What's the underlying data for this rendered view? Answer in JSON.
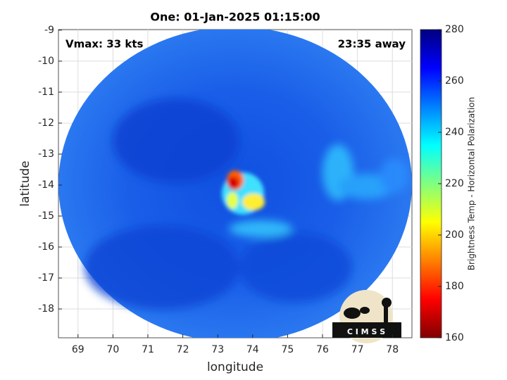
{
  "chart_data": {
    "type": "image",
    "title": "One: 01-Jan-2025 01:15:00",
    "annotations": [
      "Vmax: 33 kts",
      "23:35 away"
    ],
    "x_label": "longitude",
    "y_label": "latitude",
    "xlim": [
      68.44,
      78.56
    ],
    "xticks": [
      69,
      70,
      71,
      72,
      73,
      74,
      75,
      76,
      77,
      78
    ],
    "ylim": [
      -18.93,
      -8.98
    ],
    "yticks": [
      -18,
      -17,
      -16,
      -15,
      -14,
      -13,
      -12,
      -11,
      -10,
      -9
    ],
    "grid": true,
    "colorbar": {
      "label": "Brightness Temp - Horizontal Polarization",
      "lim": [
        160,
        280
      ],
      "ticks": [
        160,
        180,
        200,
        220,
        240,
        260,
        280
      ],
      "colors": [
        "#800000",
        "#ff0000",
        "#ff8000",
        "#ffff00",
        "#80ff80",
        "#00ffff",
        "#0080ff",
        "#0000ff",
        "#000080"
      ]
    },
    "logo": "C I M S S"
  }
}
